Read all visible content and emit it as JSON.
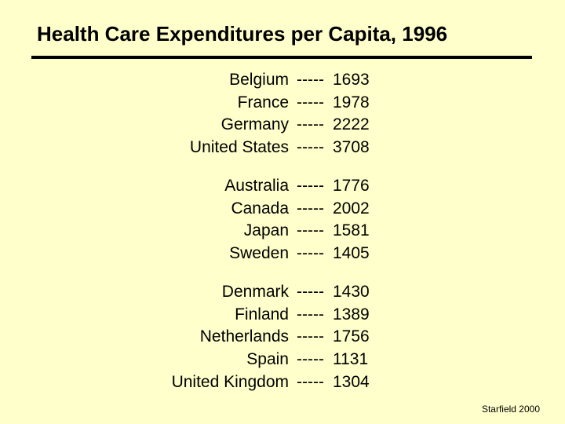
{
  "title": "Health Care Expenditures per Capita, 1996",
  "separator": "-----",
  "groups": [
    {
      "rows": [
        {
          "country": "Belgium",
          "value": "1693"
        },
        {
          "country": "France",
          "value": "1978"
        },
        {
          "country": "Germany",
          "value": "2222"
        },
        {
          "country": "United States",
          "value": "3708"
        }
      ]
    },
    {
      "rows": [
        {
          "country": "Australia",
          "value": "1776"
        },
        {
          "country": "Canada",
          "value": "2002"
        },
        {
          "country": "Japan",
          "value": "1581"
        },
        {
          "country": "Sweden",
          "value": "1405"
        }
      ]
    },
    {
      "rows": [
        {
          "country": "Denmark",
          "value": "1430"
        },
        {
          "country": "Finland",
          "value": "1389"
        },
        {
          "country": "Netherlands",
          "value": "1756"
        },
        {
          "country": "Spain",
          "value": "1131"
        },
        {
          "country": "United Kingdom",
          "value": "1304"
        }
      ]
    }
  ],
  "footer": "Starfield 2000"
}
